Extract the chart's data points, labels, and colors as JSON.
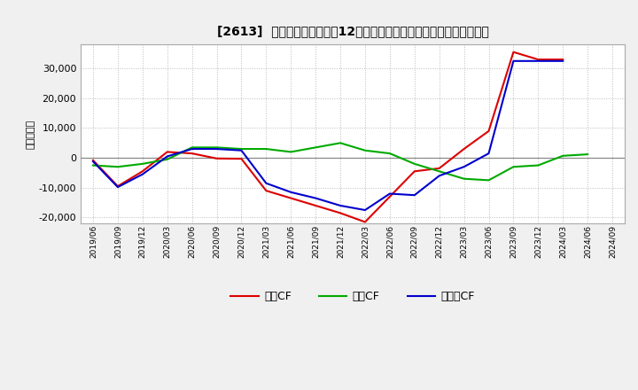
{
  "title": "[2613]  キャッシュフローの12か月移動合計の対前年同期増減額の推移",
  "ylabel": "（百万円）",
  "background_color": "#f0f0f0",
  "plot_background": "#ffffff",
  "grid_color": "#bbbbbb",
  "ylim": [
    -22000,
    38000
  ],
  "yticks": [
    -20000,
    -10000,
    0,
    10000,
    20000,
    30000
  ],
  "x_labels": [
    "2019/06",
    "2019/09",
    "2019/12",
    "2020/03",
    "2020/06",
    "2020/09",
    "2020/12",
    "2021/03",
    "2021/06",
    "2021/09",
    "2021/12",
    "2022/03",
    "2022/06",
    "2022/09",
    "2022/12",
    "2023/03",
    "2023/06",
    "2023/09",
    "2023/12",
    "2024/03",
    "2024/06",
    "2024/09"
  ],
  "operating_cf": [
    -800,
    -9500,
    -4500,
    2000,
    1500,
    -200,
    -300,
    -11000,
    -13500,
    -16000,
    -18500,
    -21500,
    -13000,
    -4500,
    -3500,
    3000,
    9000,
    35500,
    33000,
    33000,
    null,
    null
  ],
  "investing_cf": [
    -2500,
    -3000,
    -2000,
    -500,
    3500,
    3500,
    3000,
    3000,
    2000,
    3500,
    5000,
    2500,
    1500,
    -2000,
    -4500,
    -7000,
    -7500,
    -3000,
    -2500,
    700,
    1200,
    null
  ],
  "free_cf": [
    -1200,
    -9800,
    -5500,
    500,
    3000,
    3000,
    2500,
    -8500,
    -11500,
    -13500,
    -16000,
    -17500,
    -12000,
    -12500,
    -6000,
    -3000,
    1500,
    32500,
    32500,
    32500,
    null,
    null
  ],
  "operating_color": "#dd0000",
  "investing_color": "#00aa00",
  "free_color": "#0000cc",
  "legend_labels": [
    "営業CF",
    "投資CF",
    "フリーCF"
  ]
}
